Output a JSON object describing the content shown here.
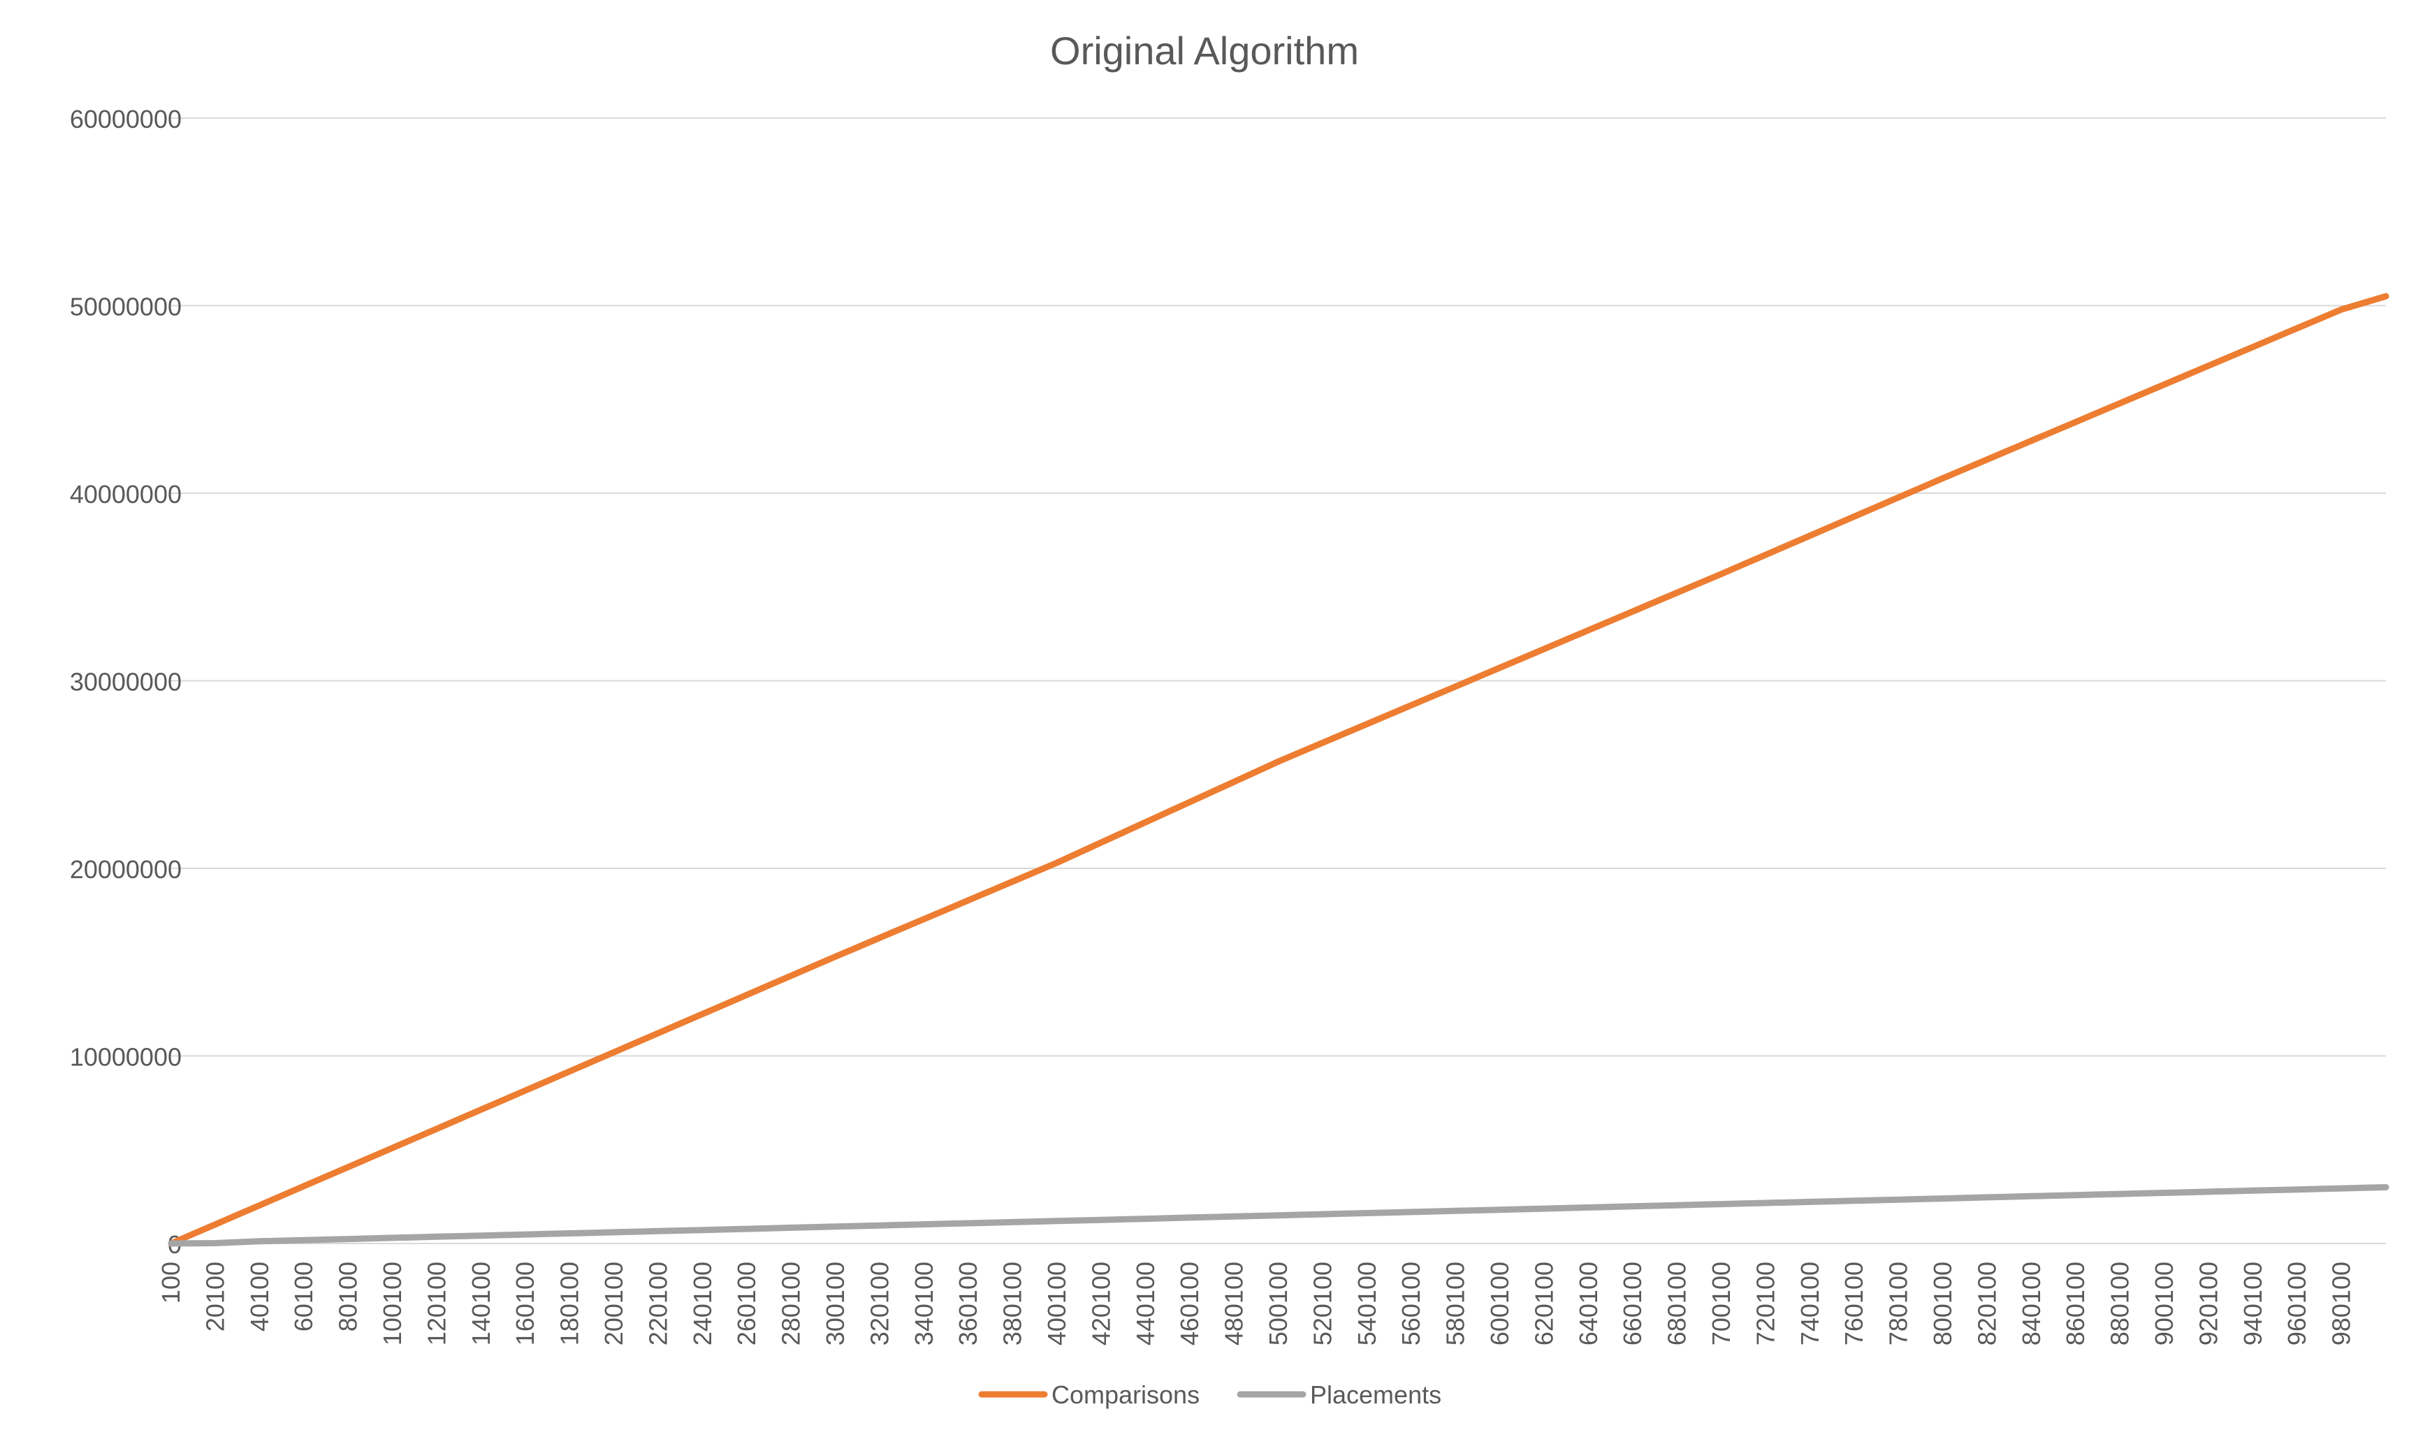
{
  "chart_data": {
    "type": "line",
    "title": "Original Algorithm",
    "xlabel": "",
    "ylabel": "",
    "ylim": [
      0,
      60000000
    ],
    "yticks": [
      "0",
      "10000000",
      "20000000",
      "30000000",
      "40000000",
      "50000000",
      "60000000"
    ],
    "x_start": 100,
    "x_step": 10000,
    "x_count": 100,
    "x_label_every": 2,
    "grid": true,
    "legend_position": "bottom",
    "series": [
      {
        "name": "Comparisons",
        "color": "#ED7D31",
        "anchors": [
          [
            100,
            0
          ],
          [
            100100,
            5100000
          ],
          [
            200100,
            10200000
          ],
          [
            300100,
            15300000
          ],
          [
            400100,
            20300000
          ],
          [
            500100,
            25700000
          ],
          [
            600100,
            30700000
          ],
          [
            700100,
            35700000
          ],
          [
            800100,
            40800000
          ],
          [
            900100,
            45800000
          ],
          [
            980100,
            49800000
          ],
          [
            1000100,
            50500000
          ]
        ]
      },
      {
        "name": "Placements",
        "color": "#A5A5A5",
        "anchors": [
          [
            100,
            0
          ],
          [
            20100,
            20000
          ],
          [
            40100,
            120000
          ],
          [
            100100,
            300000
          ],
          [
            200100,
            600000
          ],
          [
            300100,
            900000
          ],
          [
            400100,
            1200000
          ],
          [
            500100,
            1500000
          ],
          [
            600100,
            1800000
          ],
          [
            700100,
            2100000
          ],
          [
            800100,
            2400000
          ],
          [
            900100,
            2700000
          ],
          [
            1000100,
            3000000
          ]
        ]
      }
    ]
  }
}
